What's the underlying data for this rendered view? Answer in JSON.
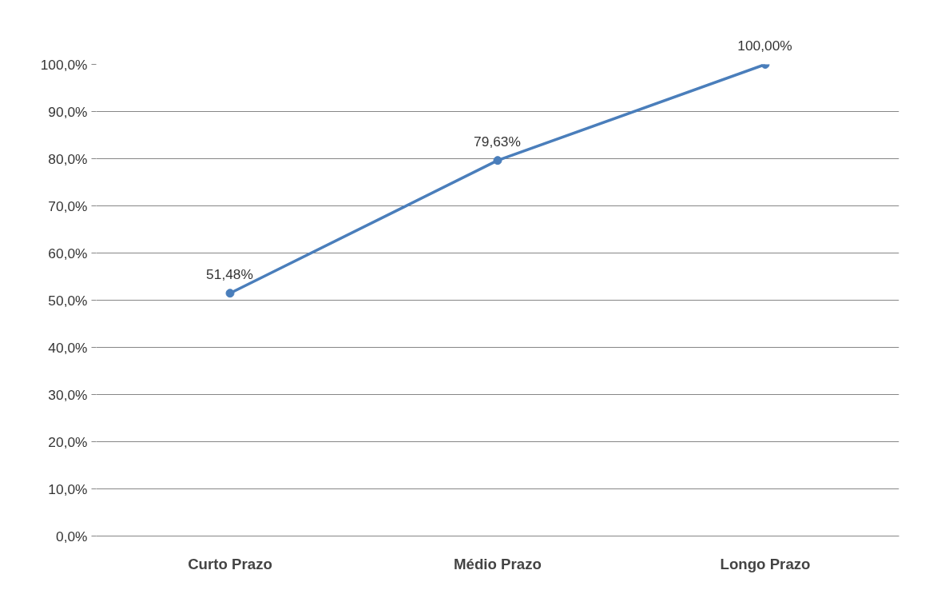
{
  "chart_data": {
    "type": "line",
    "categories": [
      "Curto Prazo",
      "Médio Prazo",
      "Longo Prazo"
    ],
    "series": [
      {
        "color": "#4a7ebb",
        "values": [
          51.48,
          79.63,
          100.0
        ],
        "value_labels": [
          "51,48%",
          "79,63%",
          "100,00%"
        ]
      }
    ],
    "ylim": [
      0,
      100
    ],
    "yticks": [
      {
        "value": 0,
        "label": "0,0%"
      },
      {
        "value": 10,
        "label": "10,0%"
      },
      {
        "value": 20,
        "label": "20,0%"
      },
      {
        "value": 30,
        "label": "30,0%"
      },
      {
        "value": 40,
        "label": "40,0%"
      },
      {
        "value": 50,
        "label": "50,0%"
      },
      {
        "value": 60,
        "label": "60,0%"
      },
      {
        "value": 70,
        "label": "70,0%"
      },
      {
        "value": 80,
        "label": "80,0%"
      },
      {
        "value": 90,
        "label": "90,0%"
      },
      {
        "value": 100,
        "label": "100,0%"
      }
    ],
    "grid": "y",
    "marker": "circle",
    "line_style": "solid"
  }
}
